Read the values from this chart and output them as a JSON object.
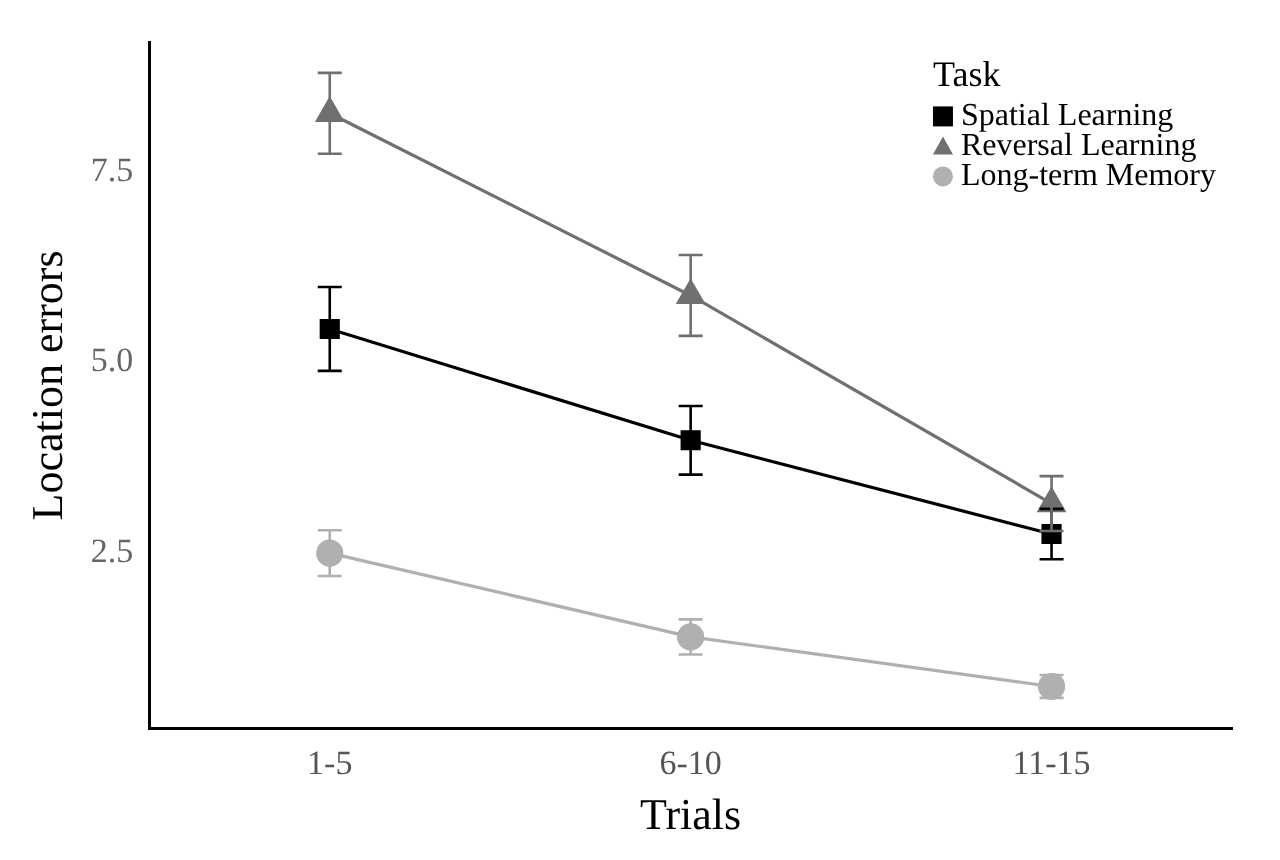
{
  "chart_data": {
    "type": "line",
    "xlabel": "Trials",
    "ylabel": "Location errors",
    "legend_title": "Task",
    "categories": [
      "1-5",
      "6-10",
      "11-15"
    ],
    "series": [
      {
        "name": "Spatial Learning",
        "color": "#000000",
        "marker": "square",
        "values": [
          5.44,
          3.98,
          2.75
        ],
        "errors": [
          0.55,
          0.45,
          0.33
        ]
      },
      {
        "name": "Reversal Learning",
        "color": "#707070",
        "marker": "triangle",
        "values": [
          8.27,
          5.88,
          3.15
        ],
        "errors": [
          0.53,
          0.53,
          0.36
        ]
      },
      {
        "name": "Long-term Memory",
        "color": "#b0b0b0",
        "marker": "circle",
        "values": [
          2.5,
          1.4,
          0.75
        ],
        "errors": [
          0.3,
          0.23,
          0.15
        ]
      }
    ],
    "ylim": [
      0.2,
      9.2
    ],
    "yticks": [
      {
        "value": 2.5,
        "label": "2.5"
      },
      {
        "value": 5,
        "label": "5.0"
      },
      {
        "value": 7.5,
        "label": "7.5"
      }
    ],
    "grid": false,
    "legend": "top right"
  }
}
